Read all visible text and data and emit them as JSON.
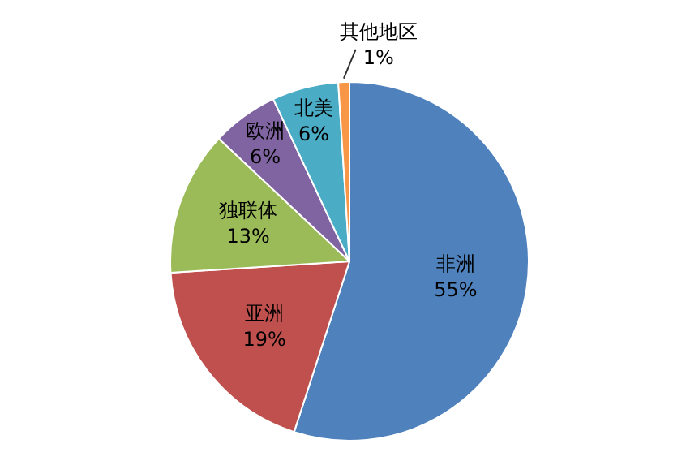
{
  "chart_data": {
    "type": "pie",
    "categories": [
      "非洲",
      "亚洲",
      "独联体",
      "欧洲",
      "北美",
      "其他地区"
    ],
    "values": [
      55,
      19,
      13,
      6,
      6,
      1
    ],
    "colors": [
      "#4f81bd",
      "#c0504d",
      "#9bbb59",
      "#8064a2",
      "#4bacc6",
      "#f79646"
    ],
    "value_labels": [
      "55%",
      "19%",
      "13%",
      "6%",
      "6%",
      "1%"
    ],
    "legend": false
  }
}
